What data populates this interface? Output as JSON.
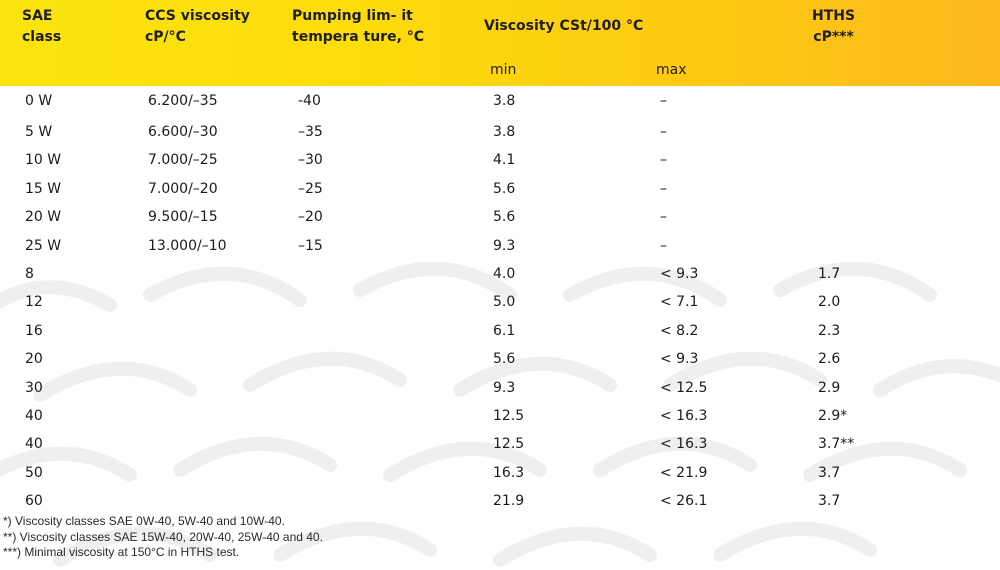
{
  "header": {
    "sae": "SAE\nclass",
    "ccs": "CCS viscosity\ncP/°C",
    "pumping": "Pumping lim-  it\ntempera  ture, °C",
    "viscosity": "Viscosity CSt/100 °C",
    "min": "min",
    "max": "max",
    "hths": "HTHS\ncP***"
  },
  "rows": [
    {
      "sae": "0 W",
      "ccs": "6.200/–35",
      "pump": "-40",
      "min": "3.8",
      "max": "–",
      "hths": ""
    },
    {
      "sae": "5 W",
      "ccs": "6.600/–30",
      "pump": "–35",
      "min": "3.8",
      "max": "–",
      "hths": ""
    },
    {
      "sae": "10 W",
      "ccs": "7.000/–25",
      "pump": "–30",
      "min": "4.1",
      "max": "–",
      "hths": ""
    },
    {
      "sae": "15 W",
      "ccs": "7.000/–20",
      "pump": "–25",
      "min": "5.6",
      "max": "–",
      "hths": ""
    },
    {
      "sae": "20 W",
      "ccs": "9.500/–15",
      "pump": "–20",
      "min": "5.6",
      "max": "–",
      "hths": ""
    },
    {
      "sae": "25 W",
      "ccs": "13.000/–10",
      "pump": "–15",
      "min": "9.3",
      "max": "–",
      "hths": ""
    },
    {
      "sae": "8",
      "ccs": "",
      "pump": "",
      "min": "4.0",
      "max": "< 9.3",
      "hths": "1.7"
    },
    {
      "sae": "12",
      "ccs": "",
      "pump": "",
      "min": "5.0",
      "max": "< 7.1",
      "hths": "2.0"
    },
    {
      "sae": "16",
      "ccs": "",
      "pump": "",
      "min": "6.1",
      "max": "< 8.2",
      "hths": "2.3"
    },
    {
      "sae": "20",
      "ccs": "",
      "pump": "",
      "min": "5.6",
      "max": "< 9.3",
      "hths": "2.6"
    },
    {
      "sae": "30",
      "ccs": "",
      "pump": "",
      "min": "9.3",
      "max": "< 12.5",
      "hths": "2.9"
    },
    {
      "sae": "40",
      "ccs": "",
      "pump": "",
      "min": "12.5",
      "max": "< 16.3",
      "hths": "2.9*"
    },
    {
      "sae": "40",
      "ccs": "",
      "pump": "",
      "min": "12.5",
      "max": "< 16.3",
      "hths": "3.7**"
    },
    {
      "sae": "50",
      "ccs": "",
      "pump": "",
      "min": "16.3",
      "max": "< 21.9",
      "hths": "3.7"
    },
    {
      "sae": "60",
      "ccs": "",
      "pump": "",
      "min": "21.9",
      "max": "< 26.1",
      "hths": "3.7"
    }
  ],
  "footnotes": [
    "*) Viscosity classes SAE 0W-40, 5W-40 and 10W-40.",
    "**) Viscosity classes SAE 15W-40, 20W-40, 25W-40 and 40.",
    "***) Minimal viscosity at 150°C in HTHS test."
  ],
  "colors": {
    "header_start": "#fbe40e",
    "header_end": "#fdb81e",
    "pattern": "#f1f1f1"
  }
}
